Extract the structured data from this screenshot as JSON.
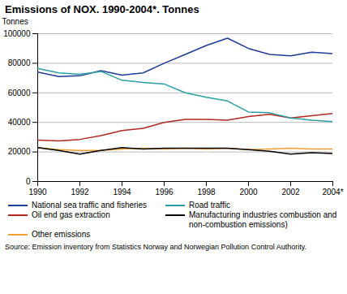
{
  "chart_data": {
    "type": "line",
    "title": "Emissions of NOX. 1990-2004*. Tonnes",
    "y_label": "Tonnes",
    "source": "Source: Emission inventory from Statistics Norway and Norwegian Pollution Control Authority.",
    "x": [
      1990,
      1991,
      1992,
      1993,
      1994,
      1995,
      1996,
      1997,
      1998,
      1999,
      2000,
      2001,
      2002,
      2003,
      2004
    ],
    "xlim": [
      1990,
      2004
    ],
    "xticks": [
      1990,
      1992,
      1994,
      1996,
      1998,
      2000,
      2002,
      {
        "value": 2004,
        "label": "2004*"
      }
    ],
    "ylim": [
      0,
      100000
    ],
    "yticks": [
      0,
      20000,
      40000,
      60000,
      80000,
      100000
    ],
    "grid": true,
    "legend": "bottom",
    "series": [
      {
        "name": "National sea traffic and fisheries",
        "color": "#1f3c96",
        "values": [
          74000,
          71000,
          71500,
          75000,
          72000,
          73500,
          80000,
          86000,
          92000,
          97000,
          90000,
          86000,
          85000,
          87500,
          86500
        ]
      },
      {
        "name": "Oil end gas extraction",
        "color": "#b0281e",
        "values": [
          28000,
          27500,
          28500,
          31000,
          34500,
          36000,
          40000,
          42000,
          42000,
          41500,
          44000,
          45500,
          43000,
          44500,
          46000
        ]
      },
      {
        "name": "Other emissions",
        "color": "#f0a030",
        "values": [
          23000,
          21500,
          21000,
          21000,
          22000,
          22500,
          22000,
          22500,
          22000,
          22500,
          21500,
          22000,
          22500,
          22000,
          22000
        ]
      },
      {
        "name": "Road traffic",
        "color": "#2aa0a4",
        "values": [
          76500,
          73500,
          72500,
          74500,
          68500,
          67000,
          66000,
          60000,
          57000,
          54500,
          47000,
          46500,
          43000,
          41500,
          40500
        ]
      },
      {
        "name": "Manufacturing industries combustion and non-combustion emissions)",
        "color": "#000000",
        "values": [
          23000,
          21000,
          18500,
          21000,
          23000,
          22000,
          22500,
          22500,
          22500,
          22500,
          21500,
          20500,
          18500,
          19500,
          19000
        ]
      }
    ]
  }
}
